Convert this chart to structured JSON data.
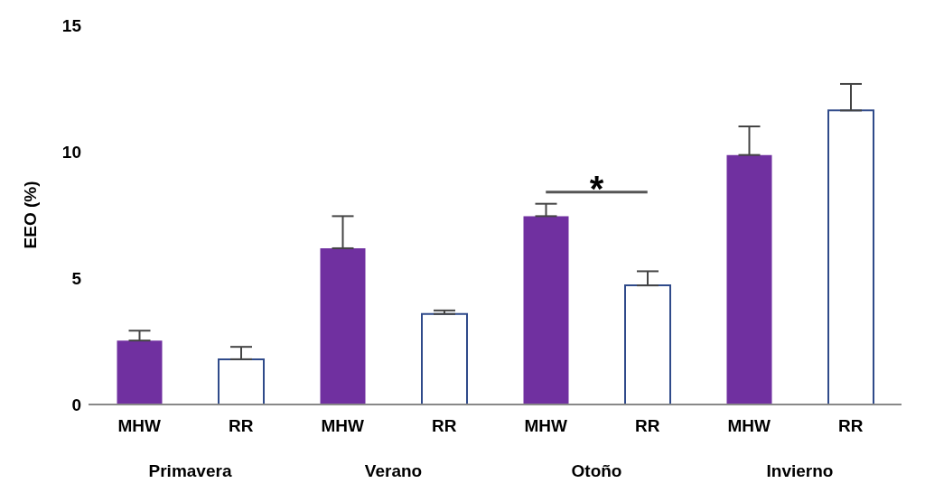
{
  "chart_data": {
    "type": "bar",
    "ylabel": "EEO (%)",
    "categories": [
      "MHW",
      "RR",
      "MHW",
      "RR",
      "MHW",
      "RR",
      "MHW",
      "RR"
    ],
    "values": [
      2.53,
      1.79,
      6.18,
      3.58,
      7.45,
      4.71,
      9.87,
      11.63
    ],
    "colors": [
      "#7030a0",
      "#ffffff",
      "#7030a0",
      "#ffffff",
      "#7030a0",
      "#ffffff",
      "#7030a0",
      "#ffffff"
    ],
    "errors": [
      [
        2.53,
        2.92
      ],
      [
        1.79,
        2.28
      ],
      [
        6.18,
        7.45
      ],
      [
        3.58,
        3.72
      ],
      [
        7.45,
        7.94
      ],
      [
        4.71,
        5.27
      ],
      [
        9.87,
        11.0
      ],
      [
        11.63,
        12.68
      ]
    ],
    "ylim": [
      0,
      15
    ],
    "yticks": [
      0,
      5,
      10,
      15
    ],
    "grid": false,
    "legend": false,
    "annotations": [
      "Primavera",
      "Verano",
      "Otoño",
      "Invierno",
      "*"
    ]
  }
}
